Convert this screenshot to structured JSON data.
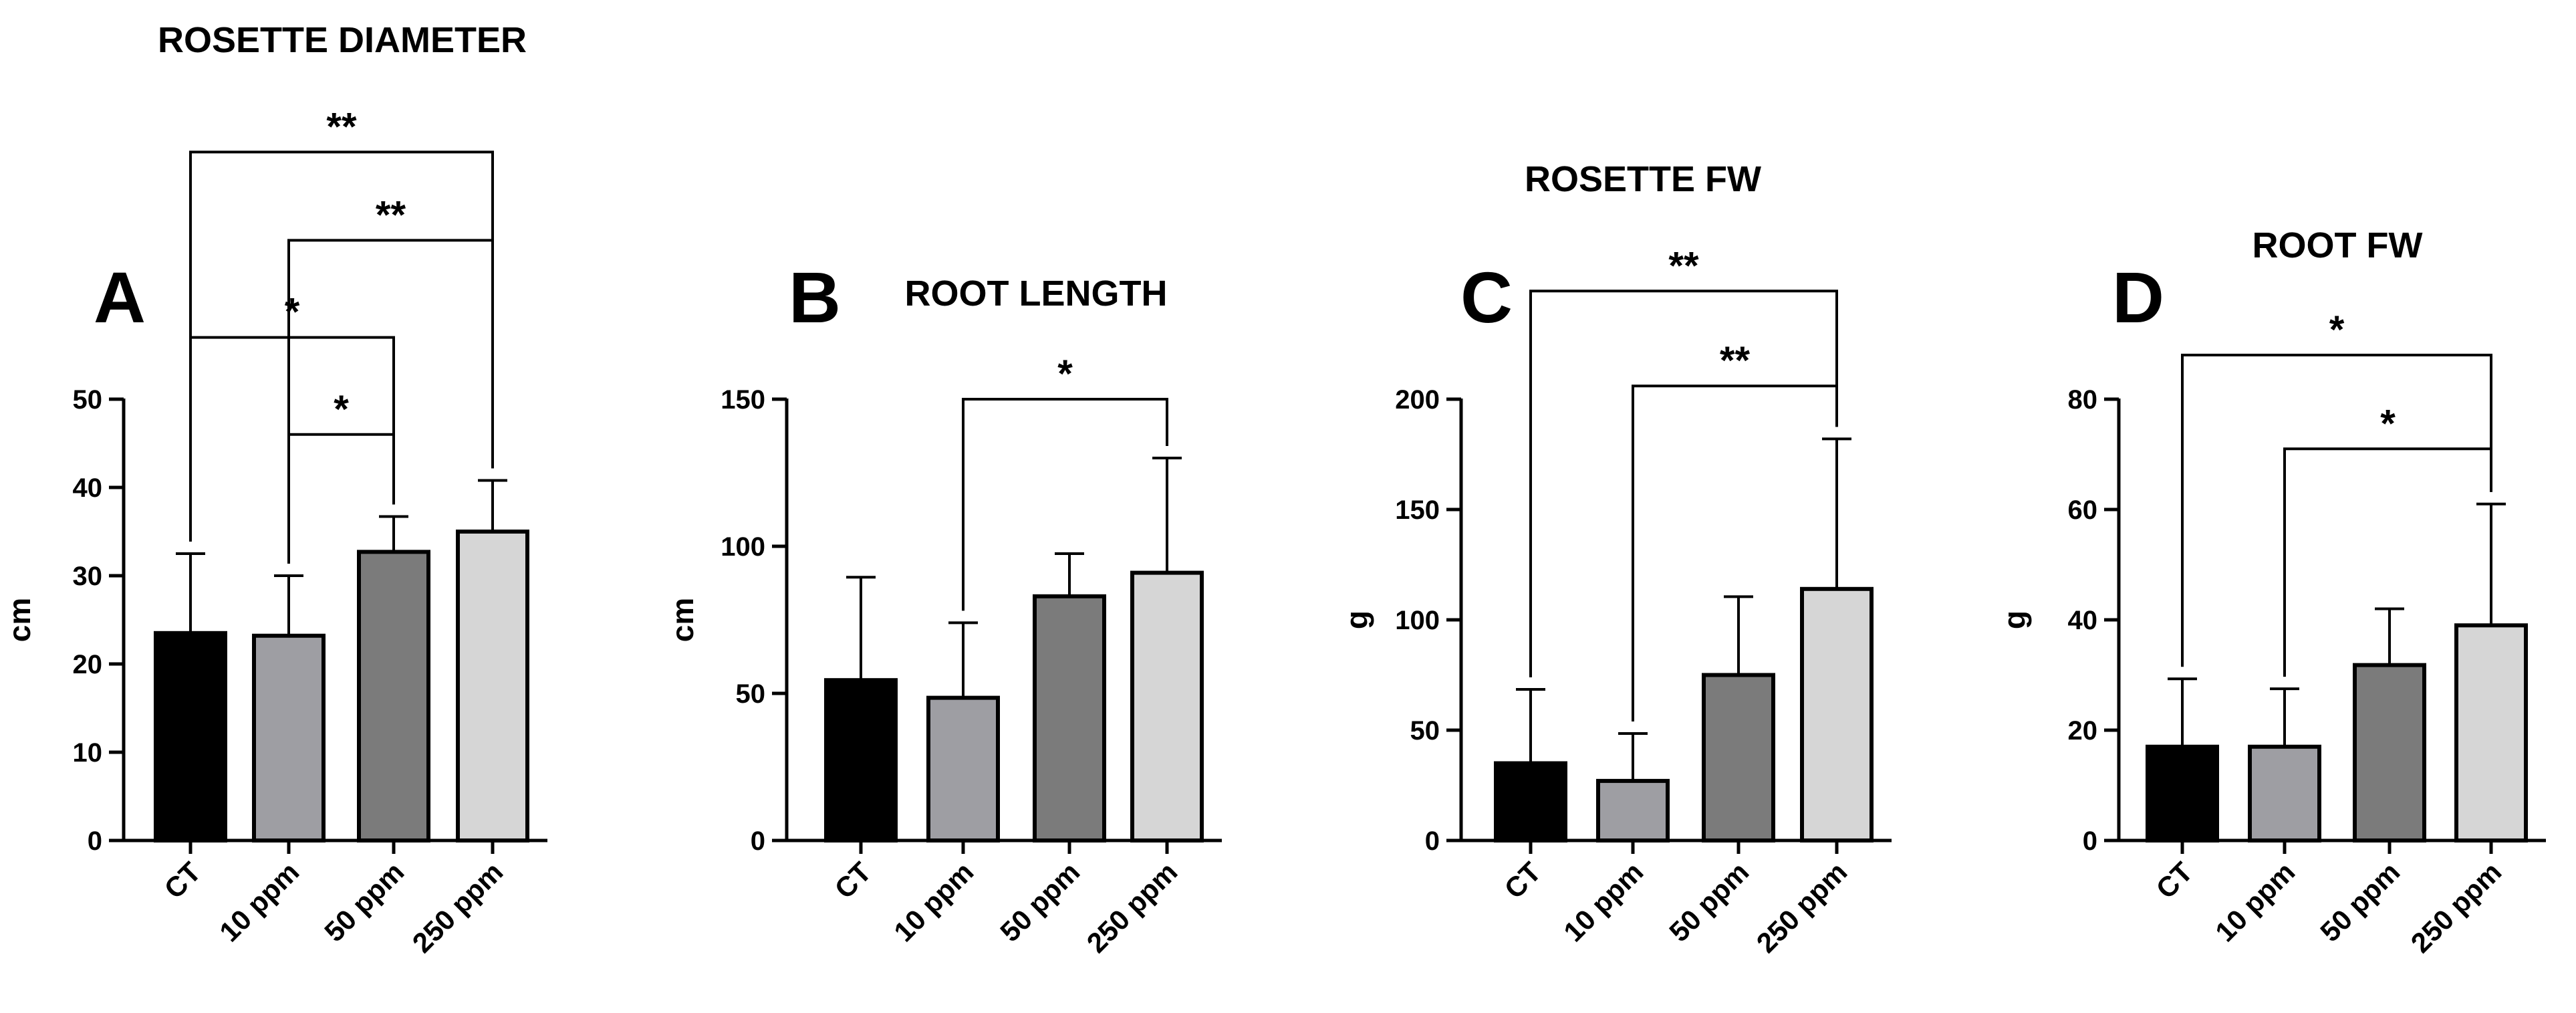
{
  "chart_data": [
    {
      "type": "bar",
      "panel": "A",
      "title": "ROSETTE DIAMETER",
      "ylabel": "cm",
      "xlabel": "",
      "ylim": [
        0,
        50
      ],
      "yticks": [
        0,
        10,
        20,
        30,
        40,
        50
      ],
      "categories": [
        "CT",
        "10 ppm",
        "50 ppm",
        "250 ppm"
      ],
      "values": [
        23.5,
        23.2,
        32.7,
        35.0
      ],
      "errors": [
        9.0,
        6.8,
        4.0,
        5.8
      ],
      "colors": [
        "#000000",
        "#9e9ea3",
        "#7b7b7b",
        "#d6d6d6"
      ],
      "significance": [
        {
          "from": 1,
          "to": 2,
          "label": "*",
          "above": 46
        },
        {
          "from": 0,
          "to": 2,
          "label": "*",
          "above": 57
        },
        {
          "from": 1,
          "to": 3,
          "label": "**",
          "above": 68
        },
        {
          "from": 0,
          "to": 3,
          "label": "**",
          "above": 78
        }
      ]
    },
    {
      "type": "bar",
      "panel": "B",
      "title": "ROOT LENGTH",
      "ylabel": "cm",
      "xlabel": "",
      "ylim": [
        0,
        150
      ],
      "yticks": [
        0,
        50,
        100,
        150
      ],
      "categories": [
        "CT",
        "10 ppm",
        "50 ppm",
        "250 ppm"
      ],
      "values": [
        54.5,
        48.5,
        83.0,
        91.0
      ],
      "errors": [
        35.0,
        25.5,
        14.5,
        39.0
      ],
      "colors": [
        "#000000",
        "#9e9ea3",
        "#7b7b7b",
        "#d6d6d6"
      ],
      "significance": [
        {
          "from": 1,
          "to": 3,
          "label": "*",
          "above": 150
        }
      ]
    },
    {
      "type": "bar",
      "panel": "C",
      "title": "ROSETTE FW",
      "ylabel": "g",
      "xlabel": "",
      "ylim": [
        0,
        200
      ],
      "yticks": [
        0,
        50,
        100,
        150,
        200
      ],
      "categories": [
        "CT",
        "10 ppm",
        "50 ppm",
        "250 ppm"
      ],
      "values": [
        35.0,
        27.0,
        75.0,
        114.0
      ],
      "errors": [
        33.5,
        21.5,
        35.5,
        68.0
      ],
      "colors": [
        "#000000",
        "#9e9ea3",
        "#7b7b7b",
        "#d6d6d6"
      ],
      "significance": [
        {
          "from": 1,
          "to": 3,
          "label": "**",
          "above": 206
        },
        {
          "from": 0,
          "to": 3,
          "label": "**",
          "above": 249
        }
      ]
    },
    {
      "type": "bar",
      "panel": "D",
      "title": "ROOT FW",
      "ylabel": "g",
      "xlabel": "",
      "ylim": [
        0,
        80
      ],
      "yticks": [
        0,
        20,
        40,
        60,
        80
      ],
      "categories": [
        "CT",
        "10 ppm",
        "50 ppm",
        "250 ppm"
      ],
      "values": [
        17.0,
        17.0,
        31.8,
        39.0
      ],
      "errors": [
        12.3,
        10.5,
        10.2,
        22.0
      ],
      "colors": [
        "#000000",
        "#9e9ea3",
        "#7b7b7b",
        "#d6d6d6"
      ],
      "significance": [
        {
          "from": 1,
          "to": 3,
          "label": "*",
          "above": 71
        },
        {
          "from": 0,
          "to": 3,
          "label": "*",
          "above": 88
        }
      ]
    }
  ]
}
